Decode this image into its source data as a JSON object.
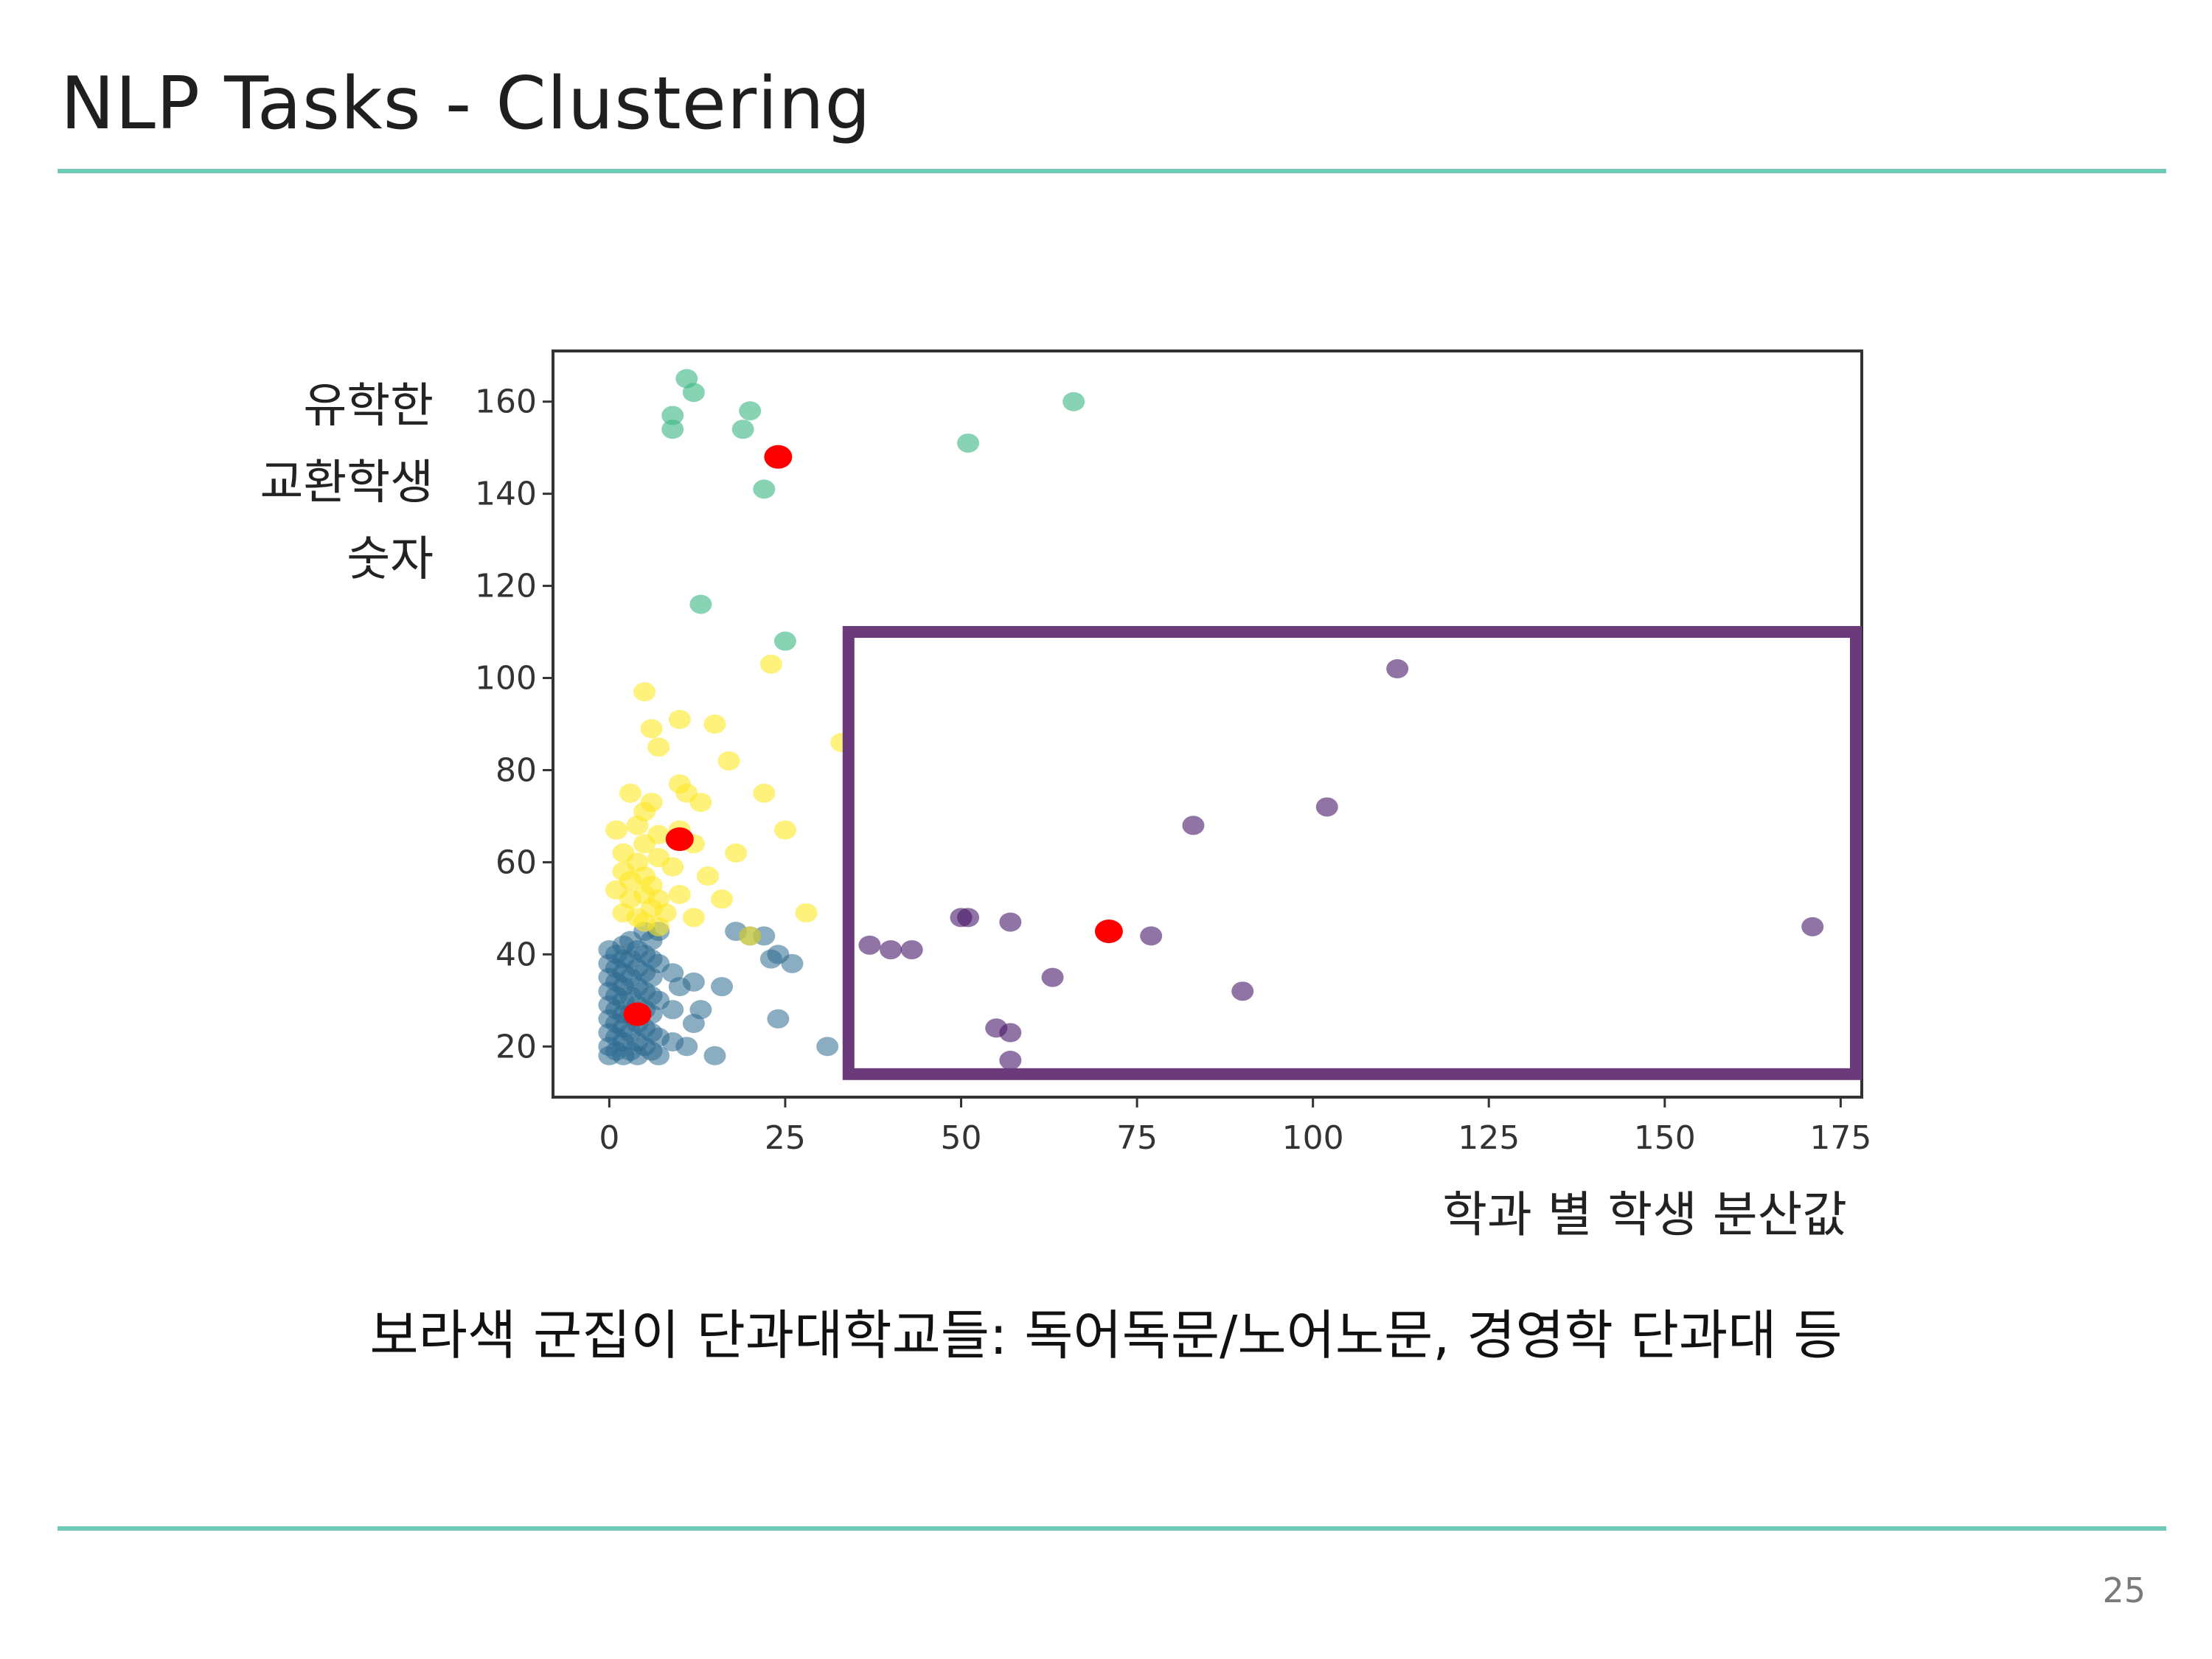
{
  "slide": {
    "title": "NLP Tasks - Clustering",
    "caption": "보라색 군집이 단과대학교들: 독어독문/노어노문, 경영학 단과대 등",
    "page_number": "25",
    "accent_color": "#6fcbb7"
  },
  "chart_data": {
    "type": "scatter",
    "title": "",
    "xlabel": "학과 별 학생 분산값",
    "ylabel": [
      "유학한",
      "교환학생",
      "숫자"
    ],
    "xlim": [
      -8,
      178
    ],
    "ylim": [
      9,
      171
    ],
    "xticks": [
      0,
      25,
      50,
      75,
      100,
      125,
      150,
      175
    ],
    "yticks": [
      20,
      40,
      60,
      80,
      100,
      120,
      140,
      160
    ],
    "grid": false,
    "legend": "none",
    "series": [
      {
        "color": "#2c6a8f",
        "opacity": 0.55,
        "points": [
          [
            0,
            18
          ],
          [
            0,
            20
          ],
          [
            0,
            23
          ],
          [
            0,
            26
          ],
          [
            0,
            29
          ],
          [
            0,
            32
          ],
          [
            0,
            35
          ],
          [
            0,
            38
          ],
          [
            0,
            41
          ],
          [
            1,
            19
          ],
          [
            1,
            22
          ],
          [
            1,
            25
          ],
          [
            1,
            28
          ],
          [
            1,
            31
          ],
          [
            1,
            34
          ],
          [
            1,
            37
          ],
          [
            1,
            40
          ],
          [
            2,
            18
          ],
          [
            2,
            21
          ],
          [
            2,
            24
          ],
          [
            2,
            27
          ],
          [
            2,
            30
          ],
          [
            2,
            33
          ],
          [
            2,
            36
          ],
          [
            2,
            39
          ],
          [
            2,
            42
          ],
          [
            3,
            19
          ],
          [
            3,
            23
          ],
          [
            3,
            27
          ],
          [
            3,
            31
          ],
          [
            3,
            35
          ],
          [
            3,
            39
          ],
          [
            3,
            43
          ],
          [
            4,
            18
          ],
          [
            4,
            21
          ],
          [
            4,
            25
          ],
          [
            4,
            29
          ],
          [
            4,
            33
          ],
          [
            4,
            37
          ],
          [
            4,
            41
          ],
          [
            5,
            20
          ],
          [
            5,
            24
          ],
          [
            5,
            28
          ],
          [
            5,
            32
          ],
          [
            5,
            36
          ],
          [
            5,
            40
          ],
          [
            5,
            45
          ],
          [
            6,
            19
          ],
          [
            6,
            23
          ],
          [
            6,
            27
          ],
          [
            6,
            31
          ],
          [
            6,
            35
          ],
          [
            6,
            39
          ],
          [
            6,
            43
          ],
          [
            7,
            18
          ],
          [
            7,
            22
          ],
          [
            7,
            30
          ],
          [
            7,
            38
          ],
          [
            7,
            45
          ],
          [
            9,
            21
          ],
          [
            9,
            28
          ],
          [
            9,
            36
          ],
          [
            10,
            33
          ],
          [
            11,
            20
          ],
          [
            12,
            25
          ],
          [
            12,
            34
          ],
          [
            13,
            28
          ],
          [
            15,
            18
          ],
          [
            16,
            33
          ],
          [
            18,
            45
          ],
          [
            20,
            44
          ],
          [
            22,
            44
          ],
          [
            23,
            39
          ],
          [
            24,
            40
          ],
          [
            24,
            26
          ],
          [
            26,
            38
          ],
          [
            31,
            20
          ]
        ]
      },
      {
        "color": "#fde725",
        "opacity": 0.6,
        "points": [
          [
            1,
            54
          ],
          [
            1,
            67
          ],
          [
            2,
            49
          ],
          [
            2,
            58
          ],
          [
            2,
            62
          ],
          [
            3,
            52
          ],
          [
            3,
            56
          ],
          [
            3,
            75
          ],
          [
            4,
            48
          ],
          [
            4,
            60
          ],
          [
            4,
            68
          ],
          [
            5,
            47
          ],
          [
            5,
            53
          ],
          [
            5,
            57
          ],
          [
            5,
            64
          ],
          [
            5,
            71
          ],
          [
            6,
            50
          ],
          [
            6,
            55
          ],
          [
            6,
            73
          ],
          [
            7,
            46
          ],
          [
            7,
            52
          ],
          [
            7,
            61
          ],
          [
            7,
            66
          ],
          [
            7,
            85
          ],
          [
            6,
            89
          ],
          [
            5,
            97
          ],
          [
            8,
            49
          ],
          [
            9,
            59
          ],
          [
            10,
            53
          ],
          [
            10,
            67
          ],
          [
            10,
            77
          ],
          [
            10,
            91
          ],
          [
            11,
            75
          ],
          [
            12,
            64
          ],
          [
            12,
            48
          ],
          [
            13,
            73
          ],
          [
            14,
            57
          ],
          [
            15,
            90
          ],
          [
            16,
            52
          ],
          [
            17,
            82
          ],
          [
            18,
            62
          ],
          [
            20,
            44
          ],
          [
            22,
            75
          ],
          [
            23,
            103
          ],
          [
            25,
            67
          ],
          [
            28,
            49
          ],
          [
            33,
            86
          ]
        ]
      },
      {
        "color": "#3bb683",
        "opacity": 0.6,
        "points": [
          [
            9,
            157
          ],
          [
            9,
            154
          ],
          [
            11,
            165
          ],
          [
            12,
            162
          ],
          [
            13,
            116
          ],
          [
            19,
            154
          ],
          [
            20,
            158
          ],
          [
            22,
            141
          ],
          [
            25,
            108
          ],
          [
            51,
            151
          ],
          [
            66,
            160
          ]
        ]
      },
      {
        "color": "#48186a",
        "opacity": 0.6,
        "points": [
          [
            37,
            42
          ],
          [
            40,
            41
          ],
          [
            43,
            41
          ],
          [
            50,
            48
          ],
          [
            51,
            48
          ],
          [
            55,
            24
          ],
          [
            57,
            23
          ],
          [
            57,
            17
          ],
          [
            57,
            47
          ],
          [
            63,
            35
          ],
          [
            77,
            44
          ],
          [
            83,
            68
          ],
          [
            90,
            32
          ],
          [
            102,
            72
          ],
          [
            112,
            102
          ],
          [
            171,
            46
          ]
        ]
      },
      {
        "color": "#ff0000",
        "opacity": 1,
        "points": [
          [
            4,
            27
          ],
          [
            10,
            65
          ],
          [
            24,
            148
          ],
          [
            71,
            45
          ]
        ]
      }
    ],
    "annotation_box": {
      "x0": 34,
      "x1": 178,
      "y0": 14,
      "y1": 110,
      "color": "#6a3a7a"
    }
  }
}
